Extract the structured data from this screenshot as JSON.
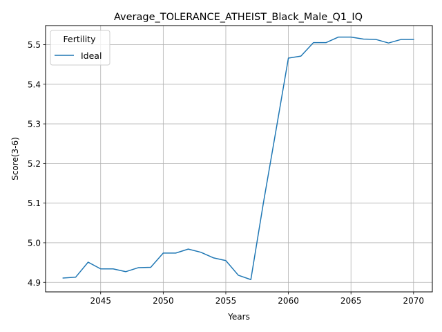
{
  "chart_data": {
    "type": "line",
    "title": "Average_TOLERANCE_ATHEIST_Black_Male_Q1_IQ",
    "xlabel": "Years",
    "ylabel": "Score(3-6)",
    "xlim": [
      2040.6,
      2071.5
    ],
    "ylim": [
      4.876,
      5.548
    ],
    "xticks": [
      2045,
      2050,
      2055,
      2060,
      2065,
      2070
    ],
    "yticks": [
      4.9,
      5.0,
      5.1,
      5.2,
      5.3,
      5.4,
      5.5
    ],
    "xtick_labels": [
      "2045",
      "2050",
      "2055",
      "2060",
      "2065",
      "2070"
    ],
    "ytick_labels": [
      "4.9",
      "5.0",
      "5.1",
      "5.2",
      "5.3",
      "5.4",
      "5.5"
    ],
    "grid": true,
    "legend": {
      "title": "Fertility",
      "placement": "upper-left"
    },
    "series": [
      {
        "name": "Ideal",
        "color": "#1f77b4",
        "x": [
          2042,
          2043,
          2044,
          2045,
          2046,
          2047,
          2048,
          2049,
          2050,
          2051,
          2052,
          2053,
          2054,
          2055,
          2056,
          2057,
          2058,
          2059,
          2060,
          2061,
          2062,
          2063,
          2064,
          2065,
          2066,
          2067,
          2068,
          2069,
          2070
        ],
        "y": [
          4.911,
          4.913,
          4.951,
          4.934,
          4.934,
          4.927,
          4.937,
          4.938,
          4.974,
          4.974,
          4.984,
          4.976,
          4.962,
          4.955,
          4.918,
          4.907,
          5.1,
          5.282,
          5.466,
          5.471,
          5.505,
          5.505,
          5.519,
          5.519,
          5.514,
          5.513,
          5.504,
          5.513,
          5.513
        ]
      }
    ]
  }
}
